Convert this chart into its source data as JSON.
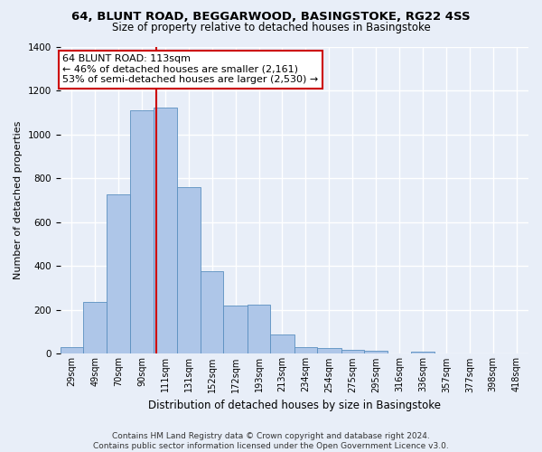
{
  "title_line1": "64, BLUNT ROAD, BEGGARWOOD, BASINGSTOKE, RG22 4SS",
  "title_line2": "Size of property relative to detached houses in Basingstoke",
  "xlabel": "Distribution of detached houses by size in Basingstoke",
  "ylabel": "Number of detached properties",
  "footer_line1": "Contains HM Land Registry data © Crown copyright and database right 2024.",
  "footer_line2": "Contains public sector information licensed under the Open Government Licence v3.0.",
  "annotation_line1": "64 BLUNT ROAD: 113sqm",
  "annotation_line2": "← 46% of detached houses are smaller (2,161)",
  "annotation_line3": "53% of semi-detached houses are larger (2,530) →",
  "property_sqm": 113,
  "bin_edges": [
    29,
    49,
    70,
    90,
    111,
    131,
    152,
    172,
    193,
    213,
    234,
    254,
    275,
    295,
    316,
    336,
    357,
    377,
    398,
    418,
    439
  ],
  "bar_heights": [
    30,
    235,
    725,
    1110,
    1120,
    760,
    375,
    220,
    225,
    90,
    30,
    25,
    20,
    15,
    0,
    10,
    0,
    0,
    0,
    0
  ],
  "bar_color": "#aec6e8",
  "bar_edge_color": "#5a8fc0",
  "vline_color": "#cc0000",
  "vline_x": 113,
  "ylim": [
    0,
    1400
  ],
  "xlim": [
    29,
    439
  ],
  "background_color": "#e8eef8",
  "grid_color": "#ffffff",
  "annotation_box_facecolor": "#ffffff",
  "annotation_box_edgecolor": "#cc0000",
  "title1_fontsize": 9.5,
  "title2_fontsize": 8.5,
  "ylabel_fontsize": 8,
  "xlabel_fontsize": 8.5,
  "tick_fontsize": 7,
  "footer_fontsize": 6.5,
  "ann_fontsize": 8
}
